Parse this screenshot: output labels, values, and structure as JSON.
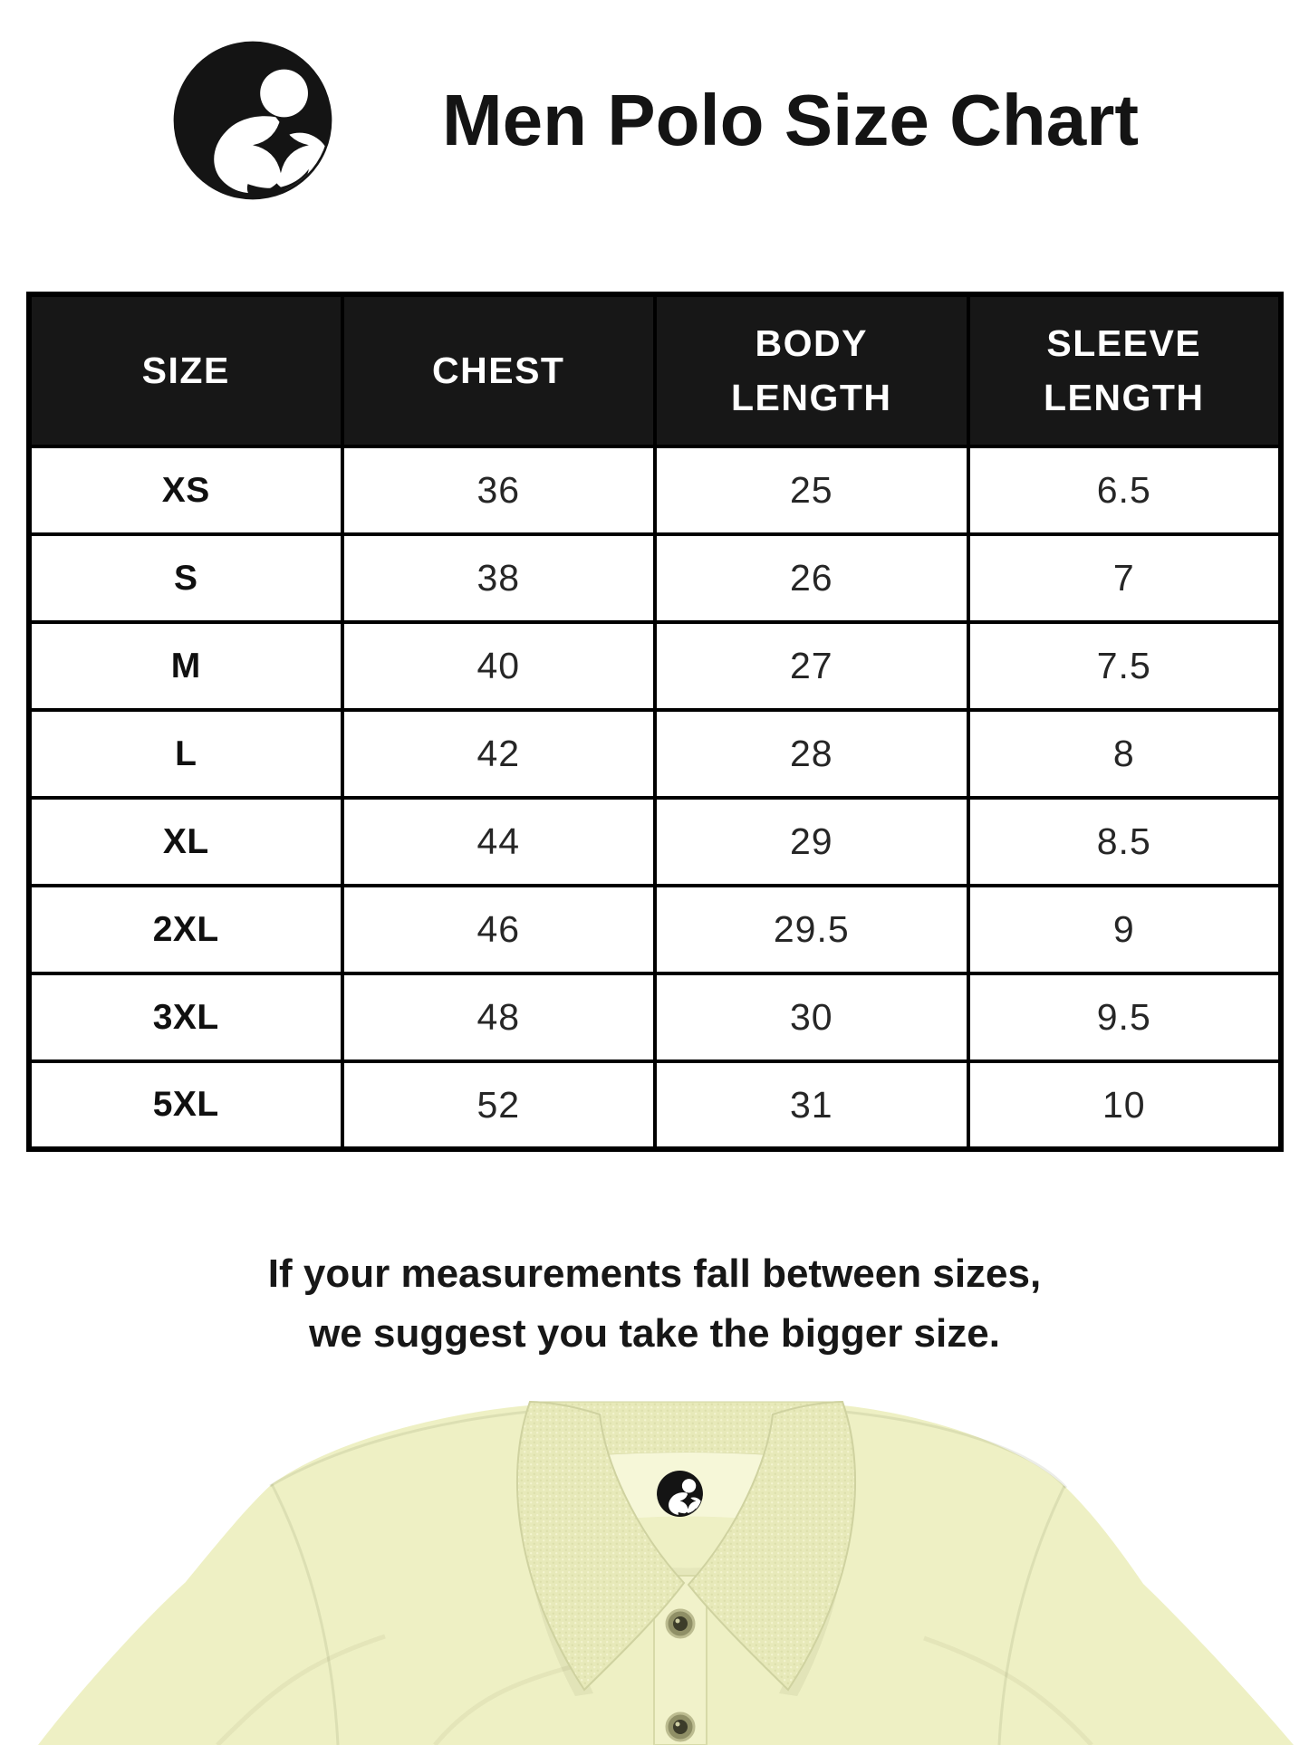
{
  "header": {
    "title": "Men Polo Size Chart",
    "logo": "brand-logo"
  },
  "table": {
    "columns": [
      "SIZE",
      "CHEST",
      "BODY LENGTH",
      "SLEEVE LENGTH"
    ],
    "rows": [
      [
        "XS",
        "36",
        "25",
        "6.5"
      ],
      [
        "S",
        "38",
        "26",
        "7"
      ],
      [
        "M",
        "40",
        "27",
        "7.5"
      ],
      [
        "L",
        "42",
        "28",
        "8"
      ],
      [
        "XL",
        "44",
        "29",
        "8.5"
      ],
      [
        "2XL",
        "46",
        "29.5",
        "9"
      ],
      [
        "3XL",
        "48",
        "30",
        "9.5"
      ],
      [
        "5XL",
        "52",
        "31",
        "10"
      ]
    ]
  },
  "note": {
    "line1": "If your measurements fall between sizes,",
    "line2": "we suggest you take the bigger size."
  },
  "colors": {
    "background": "#ffffff",
    "text": "#1a1a1a",
    "logo_color": "#141414",
    "table_header_bg": "#171717",
    "table_header_text": "#ffffff",
    "table_border": "#000000",
    "shirt_body": "#eef0c4",
    "shirt_collar": "#e7e9b9",
    "shirt_inner_neck": "#f6f7d8",
    "shirt_button": "#3c3c2a"
  }
}
